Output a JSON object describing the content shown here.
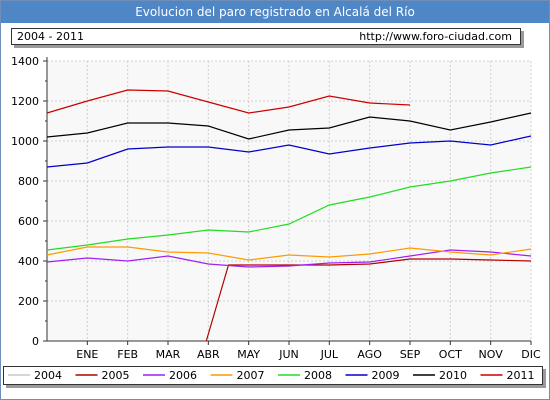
{
  "header": {
    "title": "Evolucion del paro registrado en Alcalá del Río"
  },
  "info": {
    "period": "2004 - 2011",
    "url": "http://www.foro-ciudad.com"
  },
  "chart_data": {
    "type": "line",
    "categories": [
      "ENE",
      "FEB",
      "MAR",
      "ABR",
      "MAY",
      "JUN",
      "JUL",
      "AGO",
      "SEP",
      "OCT",
      "NOV",
      "DIC"
    ],
    "x_index_start_label": "",
    "yticks": [
      "0",
      "200",
      "400",
      "600",
      "800",
      "1000",
      "1200",
      "1400"
    ],
    "ylim": [
      0,
      1400
    ],
    "grid": true,
    "legend_position": "bottom",
    "series": [
      {
        "name": "2004",
        "color": "#c8c8c8",
        "x": [],
        "values": []
      },
      {
        "name": "2005",
        "color": "#b40000",
        "x": [
          3.95,
          4.5,
          5,
          6,
          7,
          8,
          9,
          10,
          11,
          12
        ],
        "values": [
          0,
          380,
          380,
          380,
          380,
          385,
          410,
          410,
          405,
          400
        ]
      },
      {
        "name": "2006",
        "color": "#a020f0",
        "x": [
          0,
          1,
          2,
          3,
          4,
          5,
          6,
          7,
          8,
          9,
          10,
          11,
          12
        ],
        "values": [
          395,
          415,
          400,
          425,
          385,
          370,
          375,
          390,
          395,
          425,
          455,
          445,
          425
        ]
      },
      {
        "name": "2007",
        "color": "#ff9900",
        "x": [
          0,
          1,
          2,
          3,
          4,
          5,
          6,
          7,
          8,
          9,
          10,
          11,
          12
        ],
        "values": [
          430,
          470,
          470,
          445,
          440,
          405,
          430,
          420,
          435,
          465,
          445,
          430,
          460
        ]
      },
      {
        "name": "2008",
        "color": "#22dd22",
        "x": [
          0,
          1,
          2,
          3,
          4,
          5,
          6,
          7,
          8,
          9,
          10,
          11,
          12
        ],
        "values": [
          455,
          480,
          510,
          530,
          555,
          545,
          585,
          680,
          720,
          770,
          800,
          840,
          870
        ]
      },
      {
        "name": "2009",
        "color": "#0000cc",
        "x": [
          0,
          1,
          2,
          3,
          4,
          5,
          6,
          7,
          8,
          9,
          10,
          11,
          12
        ],
        "values": [
          870,
          890,
          960,
          970,
          970,
          945,
          980,
          935,
          965,
          990,
          1000,
          980,
          1025
        ]
      },
      {
        "name": "2010",
        "color": "#000000",
        "x": [
          0,
          1,
          2,
          3,
          4,
          5,
          6,
          7,
          8,
          9,
          10,
          11,
          12
        ],
        "values": [
          1020,
          1040,
          1090,
          1090,
          1075,
          1010,
          1055,
          1065,
          1120,
          1100,
          1055,
          1095,
          1140
        ]
      },
      {
        "name": "2011",
        "color": "#cc0000",
        "x": [
          0,
          1,
          2,
          3,
          4,
          5,
          6,
          7,
          8,
          9
        ],
        "values": [
          1140,
          1200,
          1255,
          1250,
          1195,
          1140,
          1170,
          1225,
          1190,
          1180
        ]
      }
    ]
  }
}
